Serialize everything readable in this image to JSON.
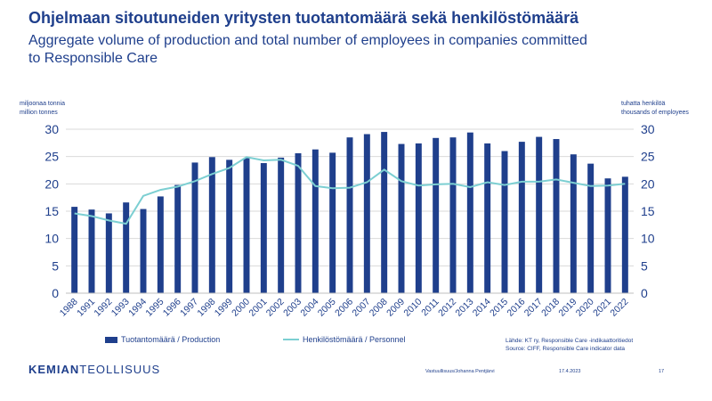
{
  "slide": {
    "title": "Ohjelmaan sitoutuneiden yritysten tuotantomäärä sekä henkilöstömäärä",
    "subtitle": "Aggregate volume of production and total number of employees in companies committed to Responsible Care",
    "left_axis_label_fi": "miljoonaa tonnia",
    "left_axis_label_en": "million tonnes",
    "right_axis_label_fi": "tuhatta henkilöä",
    "right_axis_label_en": "thousands of employees",
    "source_fi": "Lähde: KT ry, Responsible Care -indikaattoritiedot",
    "source_en": "Source: CIFF, Responsible Care indicator data",
    "logo_bold": "KEMIAN",
    "logo_regular": "TEOLLISUUS",
    "footer_author": "Vastuullisuus/Johanna Pentjärvi",
    "footer_date": "17.4.2023",
    "page_number": "17"
  },
  "chart_data": {
    "type": "bar",
    "categories": [
      "1988",
      "1991",
      "1992",
      "1993",
      "1994",
      "1995",
      "1996",
      "1997",
      "1998",
      "1999",
      "2000",
      "2001",
      "2002",
      "2003",
      "2004",
      "2005",
      "2006",
      "2007",
      "2008",
      "2009",
      "2010",
      "2011",
      "2012",
      "2013",
      "2014",
      "2015",
      "2016",
      "2017",
      "2018",
      "2019",
      "2020",
      "2021",
      "2022"
    ],
    "series": [
      {
        "name": "Tuotantomäärä / Production",
        "type": "bar",
        "axis": "left",
        "color": "#1f3f8c",
        "values": [
          15.8,
          15.3,
          14.6,
          16.6,
          15.4,
          17.7,
          19.8,
          23.9,
          24.9,
          24.4,
          24.7,
          23.8,
          24.8,
          25.6,
          26.3,
          25.7,
          28.5,
          29.1,
          29.5,
          27.3,
          27.4,
          28.4,
          28.5,
          29.4,
          27.4,
          26.0,
          27.7,
          28.6,
          28.2,
          25.4,
          23.7,
          21.0,
          21.3
        ]
      },
      {
        "name": "Henkilöstömäärä / Personnel",
        "type": "line",
        "axis": "right",
        "color": "#7ccfd2",
        "values": [
          14.6,
          14.1,
          13.3,
          12.7,
          17.8,
          18.9,
          19.5,
          20.5,
          21.8,
          22.9,
          24.9,
          24.3,
          24.4,
          23.3,
          19.6,
          19.2,
          19.3,
          20.3,
          22.6,
          20.5,
          19.7,
          19.9,
          20.0,
          19.4,
          20.3,
          19.8,
          20.4,
          20.4,
          20.8,
          20.2,
          19.6,
          19.7,
          20.0
        ]
      }
    ],
    "ylim_left": [
      0,
      30
    ],
    "ylim_right": [
      0,
      30
    ],
    "yticks": [
      0,
      5,
      10,
      15,
      20,
      25,
      30
    ],
    "grid": true
  }
}
